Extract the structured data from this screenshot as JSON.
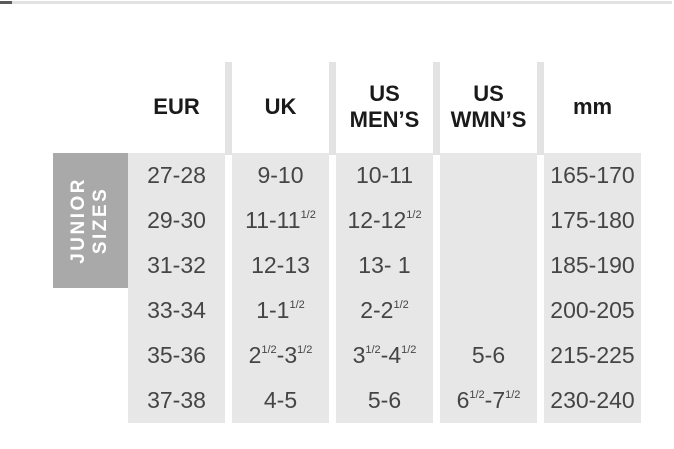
{
  "chart_data": {
    "type": "table",
    "group_label": "JUNIOR SIZES",
    "columns": [
      "EUR",
      "UK",
      "US MEN’S",
      "US WMN’S",
      "mm"
    ],
    "rows": [
      [
        "27-28",
        "9-10",
        "10-11",
        "",
        "165-170"
      ],
      [
        "29-30",
        "11-11½",
        "12-12½",
        "",
        "175-180"
      ],
      [
        "31-32",
        "12-13",
        "13- 1",
        "",
        "185-190"
      ],
      [
        "33-34",
        "1-1½",
        "2-2½",
        "",
        "200-205"
      ],
      [
        "35-36",
        "2½-3½",
        "3½-4½",
        "5-6",
        "215-225"
      ],
      [
        "37-38",
        "4-5",
        "5-6",
        "6½-7½",
        "230-240"
      ]
    ]
  },
  "side_label": {
    "line1": "JUNIOR",
    "line2": "SIZES"
  },
  "colors": {
    "cell_background": "#e7e7e7",
    "label_background": "#a9a9a9",
    "header_divider": "#e3e3e3",
    "header_text": "#1a1a1a",
    "cell_text": "#454545",
    "label_text": "#ffffff",
    "top_line": "#e2e2e2"
  }
}
